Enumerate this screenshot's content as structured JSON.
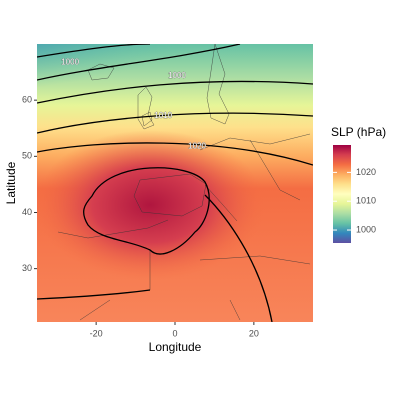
{
  "chart_data": {
    "type": "contour-map",
    "x_label": "Longitude",
    "y_label": "Latitude",
    "xlim": [
      -35,
      35
    ],
    "ylim": [
      20.5,
      70
    ],
    "xticks": [
      -20,
      0,
      20
    ],
    "yticks": [
      30,
      40,
      50,
      60
    ],
    "legend": {
      "title": "SLP (hPa)",
      "lim": [
        995.5,
        1029.5
      ],
      "ticks": [
        1000,
        1010,
        1020
      ],
      "colors": [
        "#5E4FA2",
        "#3288BD",
        "#66C2A5",
        "#ABDDA4",
        "#E6F598",
        "#FFFFBF",
        "#FEE08B",
        "#FDAE61",
        "#F46D43",
        "#D53E4F",
        "#9E0142"
      ]
    },
    "contour_labels": [
      {
        "text": "1000",
        "x": -26.6,
        "y": 66.7
      },
      {
        "text": "1000",
        "x": 0.5,
        "y": 64.3
      },
      {
        "text": "1010",
        "x": -3,
        "y": 57.2
      },
      {
        "text": "1020",
        "x": 5.6,
        "y": 51.8
      }
    ]
  }
}
